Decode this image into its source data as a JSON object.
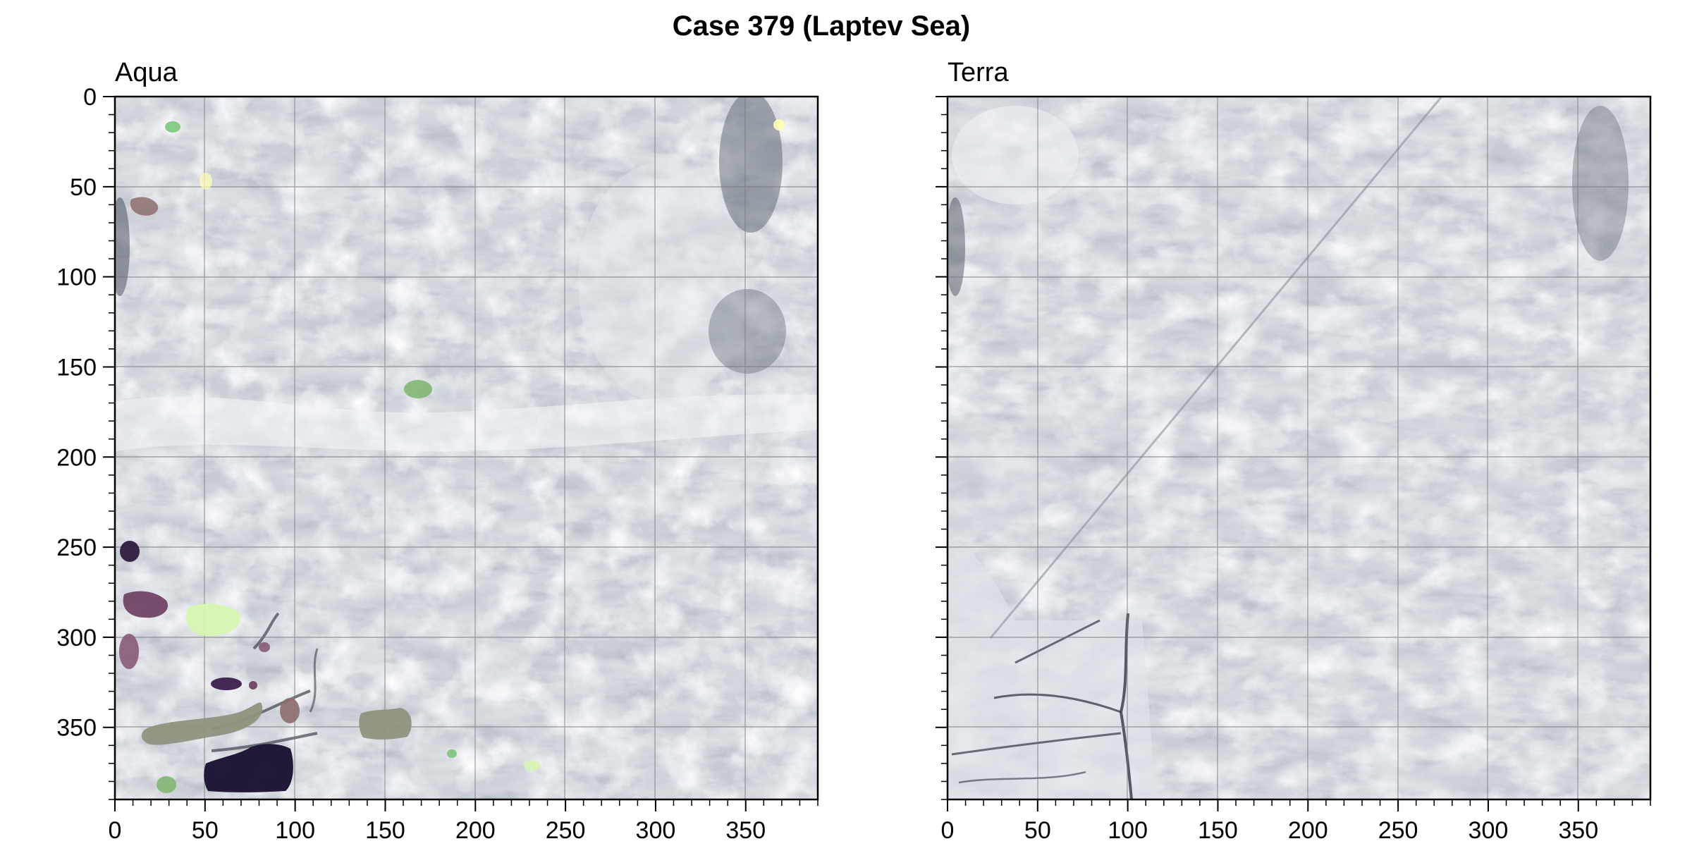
{
  "figure": {
    "title": "Case 379 (Laptev Sea)"
  },
  "panels": [
    {
      "title": "Aqua",
      "overlays": [
        {
          "label": "floe",
          "color": "#74c476"
        },
        {
          "label": "floe",
          "color": "#ffffb2"
        },
        {
          "label": "floe",
          "color": "#8c6d6d"
        },
        {
          "label": "floe",
          "color": "#7db46c"
        },
        {
          "label": "floe",
          "color": "#2d1b3d"
        },
        {
          "label": "floe",
          "color": "#6b3b5e"
        },
        {
          "label": "floe",
          "color": "#d6f5b0"
        },
        {
          "label": "floe",
          "color": "#8a5a76"
        },
        {
          "label": "floe",
          "color": "#3b1f4a"
        },
        {
          "label": "floe",
          "color": "#8e9480"
        },
        {
          "label": "floe",
          "color": "#1c1233"
        }
      ]
    },
    {
      "title": "Terra",
      "overlays": []
    }
  ],
  "axes": {
    "x_ticks": [
      "0",
      "50",
      "100",
      "150",
      "200",
      "250",
      "300",
      "350"
    ],
    "y_ticks": [
      "0",
      "50",
      "100",
      "150",
      "200",
      "250",
      "300",
      "350"
    ],
    "x_range": [
      0,
      390
    ],
    "y_range": [
      0,
      390
    ],
    "y_inverted": true,
    "grid": true
  },
  "colors": {
    "ice_base": "#c9cdd3",
    "cloud_highlight": "#f2f4f6",
    "shadow": "#5a6270",
    "grid": "#777777"
  }
}
